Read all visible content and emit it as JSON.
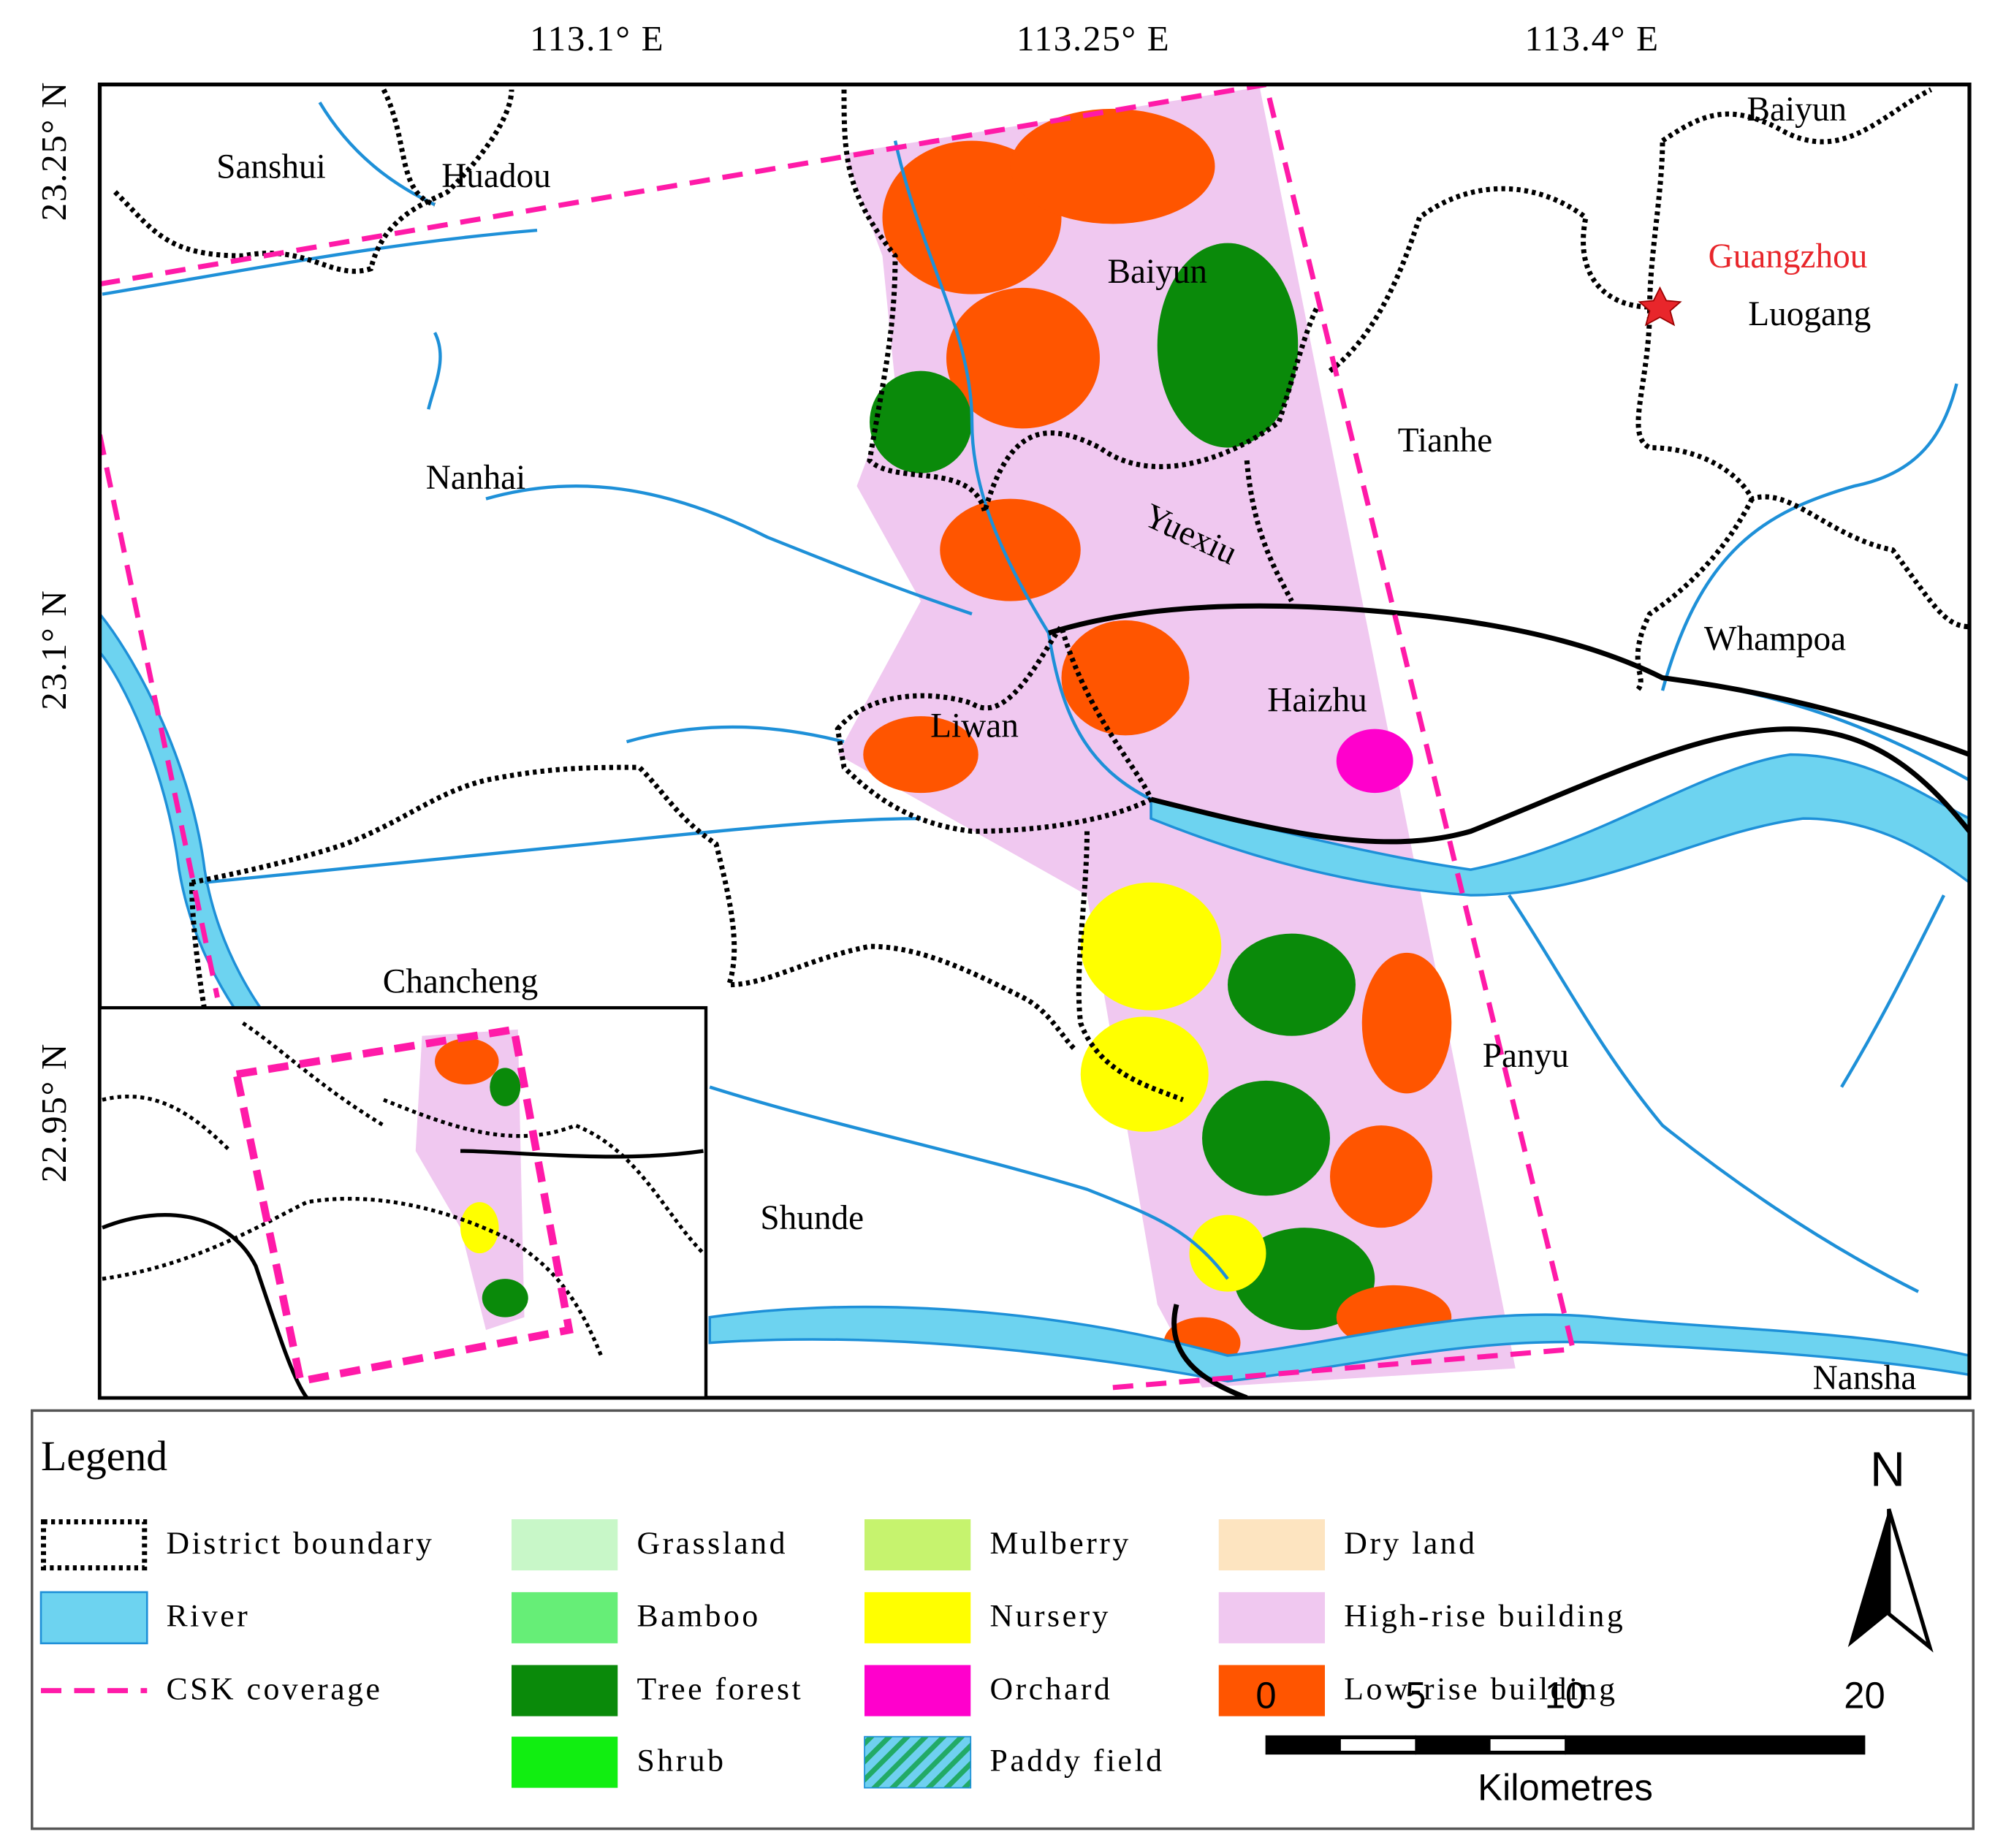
{
  "coordinates": {
    "longitude": [
      "113.1° E",
      "113.25° E",
      "113.4° E"
    ],
    "latitude": [
      "23.25° N",
      "23.1° N",
      "22.95° N"
    ]
  },
  "places": [
    "Sanshui",
    "Huadou",
    "Baiyun",
    "Baiyun",
    "Guangzhou",
    "Luogang",
    "Nanhai",
    "Tianhe",
    "Yuexiu",
    "Whampoa",
    "Haizhu",
    "Liwan",
    "Chancheng",
    "Panyu",
    "Shunde",
    "Nansha"
  ],
  "legend": {
    "title": "Legend",
    "items": [
      {
        "label": "District boundary",
        "style": "dotted",
        "color": "#000000"
      },
      {
        "label": "River",
        "style": "fill",
        "color": "#6dd3f0"
      },
      {
        "label": "CSK coverage",
        "style": "dashed",
        "color": "#ff1aa8"
      },
      {
        "label": "Grassland",
        "style": "fill",
        "color": "#c8f7c8"
      },
      {
        "label": "Bamboo",
        "style": "fill",
        "color": "#66ee77"
      },
      {
        "label": "Tree forest",
        "style": "fill",
        "color": "#0a8a0a"
      },
      {
        "label": "Shrub",
        "style": "fill",
        "color": "#11ee11"
      },
      {
        "label": "Mulberry",
        "style": "fill",
        "color": "#c6f36e"
      },
      {
        "label": "Nursery",
        "style": "fill",
        "color": "#ffff00"
      },
      {
        "label": "Orchard",
        "style": "fill",
        "color": "#ff00cc"
      },
      {
        "label": "Paddy field",
        "style": "hatch",
        "color": "#6fd0f0"
      },
      {
        "label": "Dry land",
        "style": "fill",
        "color": "#fde4c0"
      },
      {
        "label": "High-rise building",
        "style": "fill",
        "color": "#f0c8f0"
      },
      {
        "label": "Low-rise building",
        "style": "fill",
        "color": "#ff5500"
      }
    ]
  },
  "north_arrow": "N",
  "scale_bar": {
    "ticks": [
      0,
      5,
      10,
      20
    ],
    "unit": "Kilometres"
  }
}
